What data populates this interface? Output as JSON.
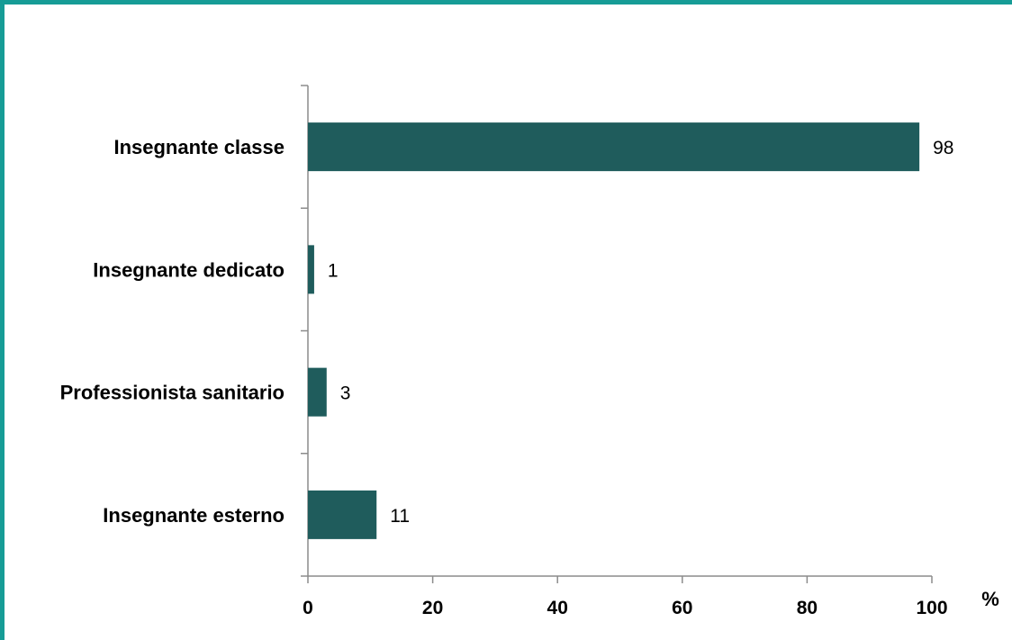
{
  "chart_data": {
    "type": "bar",
    "orientation": "horizontal",
    "categories": [
      "Insegnante classe",
      "Insegnante dedicato",
      "Professionista sanitario",
      "Insegnante esterno"
    ],
    "values": [
      98,
      1,
      3,
      11
    ],
    "data_labels": [
      "98",
      "1",
      "3",
      "11"
    ],
    "xlim": [
      0,
      100
    ],
    "x_ticks": [
      0,
      20,
      40,
      60,
      80,
      100
    ],
    "x_tick_labels": [
      "0",
      "20",
      "40",
      "60",
      "80",
      "100"
    ],
    "x_unit_label": "%",
    "grid": false,
    "legend": "none",
    "bar_color": "#1f5c5c",
    "frame_color": "#169c96"
  }
}
